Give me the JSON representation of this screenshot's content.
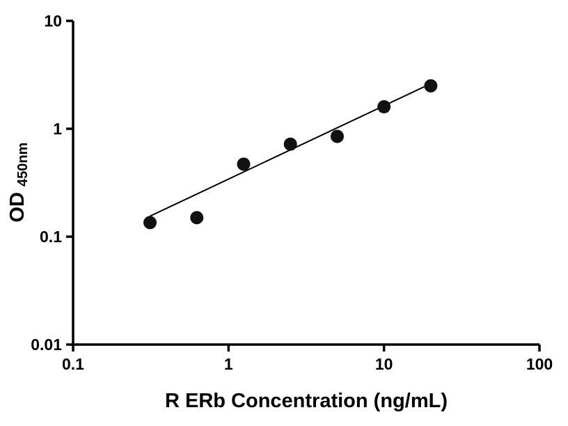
{
  "chart_data": {
    "type": "scatter",
    "title": "",
    "xlabel": "R ERb Concentration (ng/mL)",
    "ylabel_main": "OD",
    "ylabel_sub": "450nm",
    "x_scale": "log",
    "y_scale": "log",
    "xlim": [
      0.1,
      100
    ],
    "ylim": [
      0.01,
      10
    ],
    "x_ticks": [
      0.1,
      1,
      10,
      100
    ],
    "x_tick_labels": [
      "0.1",
      "1",
      "10",
      "100"
    ],
    "y_ticks": [
      0.01,
      0.1,
      1,
      10
    ],
    "y_tick_labels": [
      "0.01",
      "0.1",
      "1",
      "10"
    ],
    "grid": false,
    "legend": "none",
    "series": [
      {
        "name": "standard-fit-line",
        "type": "line",
        "x": [
          0.3125,
          20
        ],
        "y": [
          0.155,
          2.62
        ],
        "color": "#000000"
      },
      {
        "name": "standard-points",
        "type": "scatter",
        "x": [
          0.3125,
          0.625,
          1.25,
          2.5,
          5,
          10,
          20
        ],
        "y": [
          0.135,
          0.15,
          0.47,
          0.72,
          0.85,
          1.6,
          2.5
        ],
        "color": "#111111"
      }
    ],
    "colors": {
      "axis": "#000000",
      "marker": "#111111",
      "line": "#000000",
      "background": "#ffffff"
    }
  }
}
